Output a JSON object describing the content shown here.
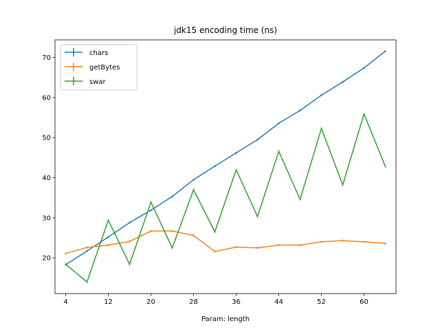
{
  "chart_data": {
    "type": "line",
    "title": "jdk15 encoding time (ns)",
    "xlabel": "Param: length",
    "ylabel": "",
    "x": [
      4,
      8,
      12,
      16,
      20,
      24,
      28,
      32,
      36,
      40,
      44,
      48,
      52,
      56,
      60,
      64
    ],
    "xticks": [
      4,
      12,
      20,
      28,
      36,
      44,
      52,
      60
    ],
    "yticks": [
      20,
      30,
      40,
      50,
      60,
      70
    ],
    "xlim": [
      2,
      66
    ],
    "ylim": [
      11.1,
      74.4
    ],
    "grid": false,
    "legend_position": "upper-left",
    "series": [
      {
        "name": "chars",
        "color": "#1f77b4",
        "values": [
          18.3,
          21.7,
          25.2,
          28.8,
          31.9,
          35.3,
          39.5,
          42.9,
          46.2,
          49.5,
          53.6,
          56.8,
          60.6,
          63.9,
          67.4,
          71.6
        ]
      },
      {
        "name": "getBytes",
        "color": "#ff7f0e",
        "values": [
          21.1,
          22.6,
          23.2,
          24.1,
          26.7,
          26.7,
          25.6,
          21.6,
          22.7,
          22.5,
          23.2,
          23.2,
          24.0,
          24.3,
          24.0,
          23.6
        ]
      },
      {
        "name": "swar",
        "color": "#2ca02c",
        "values": [
          18.4,
          14.0,
          29.4,
          18.4,
          33.9,
          22.5,
          37.0,
          26.5,
          42.0,
          30.3,
          46.6,
          34.6,
          52.3,
          38.2,
          55.9,
          42.8
        ]
      }
    ]
  }
}
